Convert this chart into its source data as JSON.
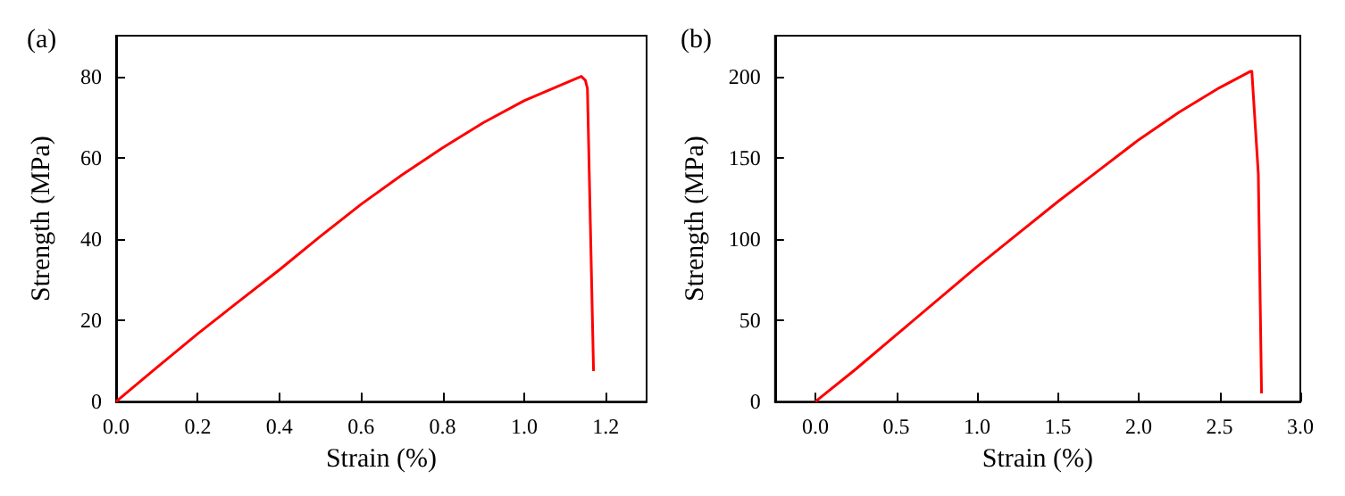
{
  "chart_data": [
    {
      "type": "line",
      "title": "(a)",
      "xlabel": "Strain (%)",
      "ylabel": "Strength (MPa)",
      "xlim": [
        0,
        1.3
      ],
      "xticks": [
        {
          "value": 0,
          "label": "0.0"
        },
        0.2,
        0.4,
        0.6,
        0.8,
        {
          "value": 1,
          "label": "1.0"
        },
        1.2
      ],
      "ylim": [
        0,
        90
      ],
      "yticks": [
        0,
        20,
        40,
        60,
        80
      ],
      "grid": false,
      "marker": "none",
      "line_style": "solid",
      "series": [
        {
          "color": "#ff0000",
          "x": [
            0,
            0.1,
            0.2,
            0.3,
            0.4,
            0.5,
            0.6,
            0.7,
            0.8,
            0.9,
            1.0,
            1.1,
            1.14,
            1.15,
            1.155,
            1.17
          ],
          "values": [
            0,
            8.4,
            16.7,
            24.6,
            32.4,
            40.6,
            48.5,
            55.7,
            62.4,
            68.6,
            74,
            78.3,
            80,
            79,
            77,
            7.5
          ]
        }
      ]
    },
    {
      "type": "line",
      "title": "(b)",
      "xlabel": "Strain (%)",
      "ylabel": "Strength (MPa)",
      "xlim": [
        -0.25,
        3.0
      ],
      "xticks": [
        {
          "value": 0,
          "label": "0.0"
        },
        0.5,
        {
          "value": 1,
          "label": "1.0"
        },
        1.5,
        {
          "value": 2,
          "label": "2.0"
        },
        2.5,
        {
          "value": 3,
          "label": "3.0"
        }
      ],
      "ylim": [
        0,
        225
      ],
      "yticks": [
        0,
        50,
        100,
        150,
        200
      ],
      "grid": false,
      "marker": "none",
      "line_style": "solid",
      "series": [
        {
          "color": "#ff0000",
          "x": [
            0,
            0.25,
            0.5,
            0.75,
            1.0,
            1.25,
            1.5,
            1.75,
            2.0,
            2.25,
            2.5,
            2.69,
            2.7,
            2.74,
            2.76
          ],
          "values": [
            0,
            20,
            41,
            62,
            83,
            103,
            123,
            142,
            161,
            178,
            193,
            203,
            203,
            140,
            5
          ]
        }
      ]
    }
  ]
}
